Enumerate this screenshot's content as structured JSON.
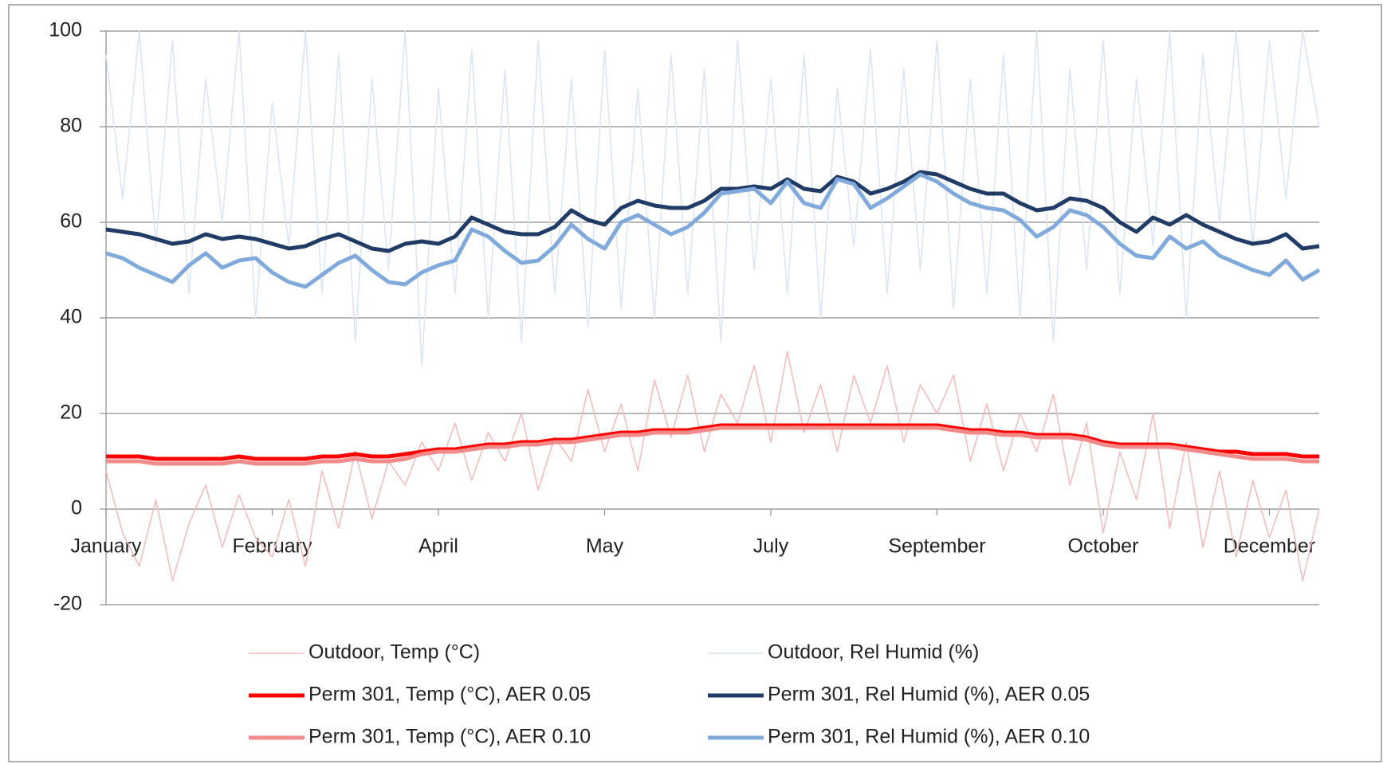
{
  "chart_data": {
    "type": "line",
    "categories": [
      "January",
      null,
      null,
      null,
      null,
      null,
      null,
      null,
      null,
      null,
      "February",
      null,
      null,
      null,
      null,
      null,
      null,
      null,
      null,
      null,
      "April",
      null,
      null,
      null,
      null,
      null,
      null,
      null,
      null,
      null,
      "May",
      null,
      null,
      null,
      null,
      null,
      null,
      null,
      null,
      null,
      "July",
      null,
      null,
      null,
      null,
      null,
      null,
      null,
      null,
      null,
      "September",
      null,
      null,
      null,
      null,
      null,
      null,
      null,
      null,
      null,
      "October",
      null,
      null,
      null,
      null,
      null,
      null,
      null,
      null,
      null,
      "December",
      null,
      null,
      null
    ],
    "ylim": [
      -20,
      100
    ],
    "yticks": [
      -20,
      0,
      20,
      40,
      60,
      80,
      100
    ],
    "grid": true,
    "legend": "bottom",
    "series": [
      {
        "name": "Outdoor, Temp (°C)",
        "color": "#f5b8b8",
        "line_width": 1.5,
        "values": [
          8,
          -5,
          -12,
          2,
          -15,
          -3,
          5,
          -8,
          3,
          -6,
          -10,
          2,
          -12,
          8,
          -4,
          12,
          -2,
          10,
          5,
          14,
          8,
          18,
          6,
          16,
          10,
          20,
          4,
          15,
          10,
          25,
          12,
          22,
          8,
          27,
          15,
          28,
          12,
          24,
          18,
          30,
          14,
          33,
          16,
          26,
          12,
          28,
          18,
          30,
          14,
          26,
          20,
          28,
          10,
          22,
          8,
          20,
          12,
          24,
          5,
          18,
          -5,
          12,
          2,
          20,
          -4,
          14,
          -8,
          8,
          -10,
          6,
          -6,
          4,
          -15,
          0
        ]
      },
      {
        "name": "Outdoor, Rel Humid (%)",
        "color": "#d9e4f4",
        "line_width": 1.5,
        "values": [
          95,
          65,
          100,
          55,
          98,
          45,
          90,
          60,
          100,
          40,
          85,
          55,
          100,
          45,
          95,
          35,
          90,
          50,
          100,
          30,
          88,
          45,
          96,
          40,
          92,
          35,
          98,
          45,
          90,
          38,
          96,
          42,
          88,
          40,
          95,
          45,
          92,
          35,
          98,
          50,
          90,
          45,
          95,
          40,
          88,
          55,
          96,
          45,
          92,
          50,
          98,
          42,
          90,
          45,
          95,
          40,
          100,
          35,
          92,
          50,
          98,
          45,
          90,
          55,
          100,
          40,
          95,
          60,
          100,
          55,
          98,
          65,
          100,
          80
        ]
      },
      {
        "name": "Perm 301, Temp (°C),  AER 0.05",
        "color": "#ff0000",
        "line_width": 5,
        "values": [
          11,
          11,
          11,
          10.5,
          10.5,
          10.5,
          10.5,
          10.5,
          11,
          10.5,
          10.5,
          10.5,
          10.5,
          11,
          11,
          11.5,
          11,
          11,
          11.5,
          12,
          12.5,
          12.5,
          13,
          13.5,
          13.5,
          14,
          14,
          14.5,
          14.5,
          15,
          15.5,
          16,
          16,
          16.5,
          16.5,
          16.5,
          17,
          17.5,
          17.5,
          17.5,
          17.5,
          17.5,
          17.5,
          17.5,
          17.5,
          17.5,
          17.5,
          17.5,
          17.5,
          17.5,
          17.5,
          17,
          16.5,
          16.5,
          16,
          16,
          15.5,
          15.5,
          15.5,
          15,
          14,
          13.5,
          13.5,
          13.5,
          13.5,
          13,
          12.5,
          12,
          12,
          11.5,
          11.5,
          11.5,
          11,
          11
        ]
      },
      {
        "name": "Perm 301, Rel Humid (%), AER 0.05",
        "color": "#1f3b66",
        "line_width": 5,
        "values": [
          58.5,
          58,
          57.5,
          56.5,
          55.5,
          56,
          57.5,
          56.5,
          57,
          56.5,
          55.5,
          54.5,
          55,
          56.5,
          57.5,
          56,
          54.5,
          54,
          55.5,
          56,
          55.5,
          57,
          61,
          59.5,
          58,
          57.5,
          57.5,
          59,
          62.5,
          60.5,
          59.5,
          63,
          64.5,
          63.5,
          63,
          63,
          64.5,
          67,
          67,
          67.5,
          67,
          69,
          67,
          66.5,
          69.5,
          68.5,
          66,
          67,
          68.5,
          70.5,
          70,
          68.5,
          67,
          66,
          66,
          64,
          62.5,
          63,
          65,
          64.5,
          63,
          60,
          58,
          61,
          59.5,
          61.5,
          59.5,
          58,
          56.5,
          55.5,
          56,
          57.5,
          54.5,
          55
        ]
      },
      {
        "name": "Perm 301, Temp (°C),  AER 0.10",
        "color": "#f28a8a",
        "line_width": 5,
        "values": [
          10,
          10,
          10,
          9.5,
          9.5,
          9.5,
          9.5,
          9.5,
          10,
          9.5,
          9.5,
          9.5,
          9.5,
          10,
          10,
          10.5,
          10,
          10,
          10.5,
          11.5,
          12,
          12,
          12.5,
          13,
          13,
          13.5,
          13.5,
          14,
          14,
          14.5,
          15,
          15.5,
          15.5,
          16,
          16,
          16,
          16.5,
          17,
          17,
          17,
          17,
          17,
          17,
          17,
          17,
          17,
          17,
          17,
          17,
          17,
          17,
          16.5,
          16,
          16,
          15.5,
          15.5,
          15,
          15,
          15,
          14.5,
          13.5,
          13,
          13,
          13,
          13,
          12.5,
          12,
          11.5,
          11,
          10.5,
          10.5,
          10.5,
          10,
          10
        ]
      },
      {
        "name": "Perm 301, Rel Humid (%), AER 0.10",
        "color": "#80a9dc",
        "line_width": 5,
        "values": [
          53.5,
          52.5,
          50.5,
          49,
          47.5,
          51,
          53.5,
          50.5,
          52,
          52.5,
          49.5,
          47.5,
          46.5,
          49,
          51.5,
          53,
          50,
          47.5,
          47,
          49.5,
          51,
          52,
          58.5,
          57,
          54,
          51.5,
          52,
          55,
          59.5,
          56.5,
          54.5,
          60,
          61.5,
          59.5,
          57.5,
          59,
          62,
          66,
          66.5,
          67,
          64,
          68.5,
          64,
          63,
          69,
          68,
          63,
          65,
          67.5,
          70,
          68.5,
          66,
          64,
          63,
          62.5,
          60.5,
          57,
          59,
          62.5,
          61.5,
          59,
          55.5,
          53,
          52.5,
          57,
          54.5,
          56,
          53,
          51.5,
          50,
          49,
          52,
          48,
          50
        ]
      }
    ]
  }
}
